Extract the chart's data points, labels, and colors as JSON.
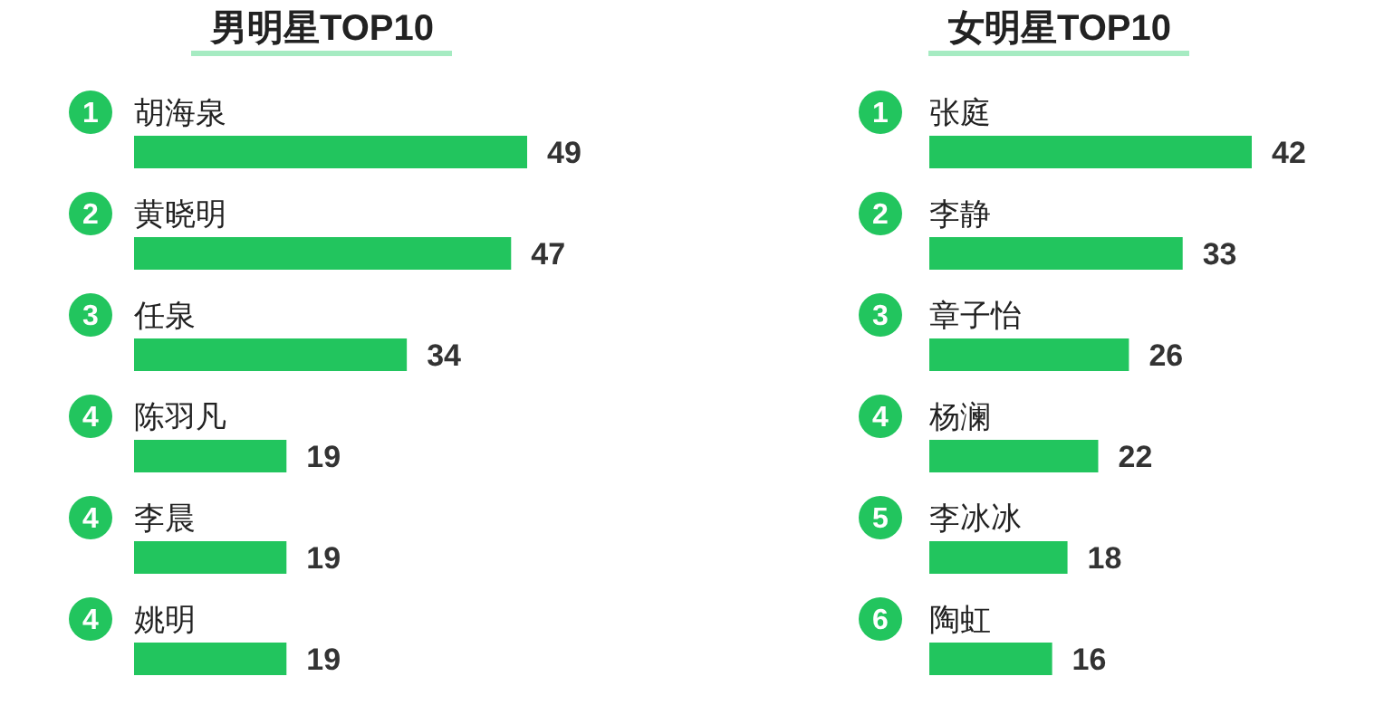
{
  "chart_data": [
    {
      "type": "bar",
      "orientation": "horizontal",
      "title": "男明星TOP10",
      "categories": [
        "胡海泉",
        "黄晓明",
        "任泉",
        "陈羽凡",
        "李晨",
        "姚明"
      ],
      "values": [
        49,
        47,
        34,
        19,
        19,
        19
      ],
      "color": "#22c55e",
      "data_labels": true,
      "tick_labels": "y",
      "annotations": [
        "1",
        "2",
        "3",
        "4",
        "4",
        "4"
      ]
    },
    {
      "type": "bar",
      "orientation": "horizontal",
      "title": "女明星TOP10",
      "categories": [
        "张庭",
        "李静",
        "章子怡",
        "杨澜",
        "李冰冰",
        "陶虹"
      ],
      "values": [
        42,
        33,
        26,
        22,
        18,
        16
      ],
      "color": "#22c55e",
      "data_labels": true,
      "tick_labels": "y",
      "annotations": [
        "1",
        "2",
        "3",
        "4",
        "5",
        "6"
      ]
    }
  ]
}
